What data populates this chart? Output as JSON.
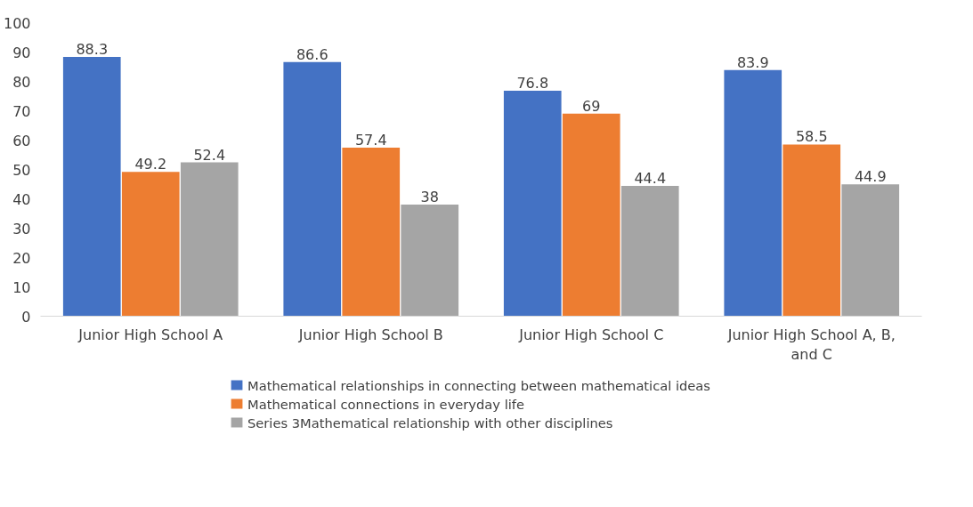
{
  "chart_data": {
    "type": "bar",
    "categories": [
      "Junior High School A",
      "Junior High School B",
      "Junior High School C",
      "Junior High School A, B, and C"
    ],
    "series": [
      {
        "name": "Mathematical relationships in connecting between mathematical ideas",
        "color": "#4472c4",
        "values": [
          88.3,
          86.6,
          76.8,
          83.9
        ]
      },
      {
        "name": "Mathematical connections in everyday life",
        "color": "#ed7d31",
        "values": [
          49.2,
          57.4,
          69,
          58.5
        ]
      },
      {
        "name": "Series 3Mathematical relationship with other disciplines",
        "color": "#a5a5a5",
        "values": [
          52.4,
          38,
          44.4,
          44.9
        ]
      }
    ],
    "ylim": [
      0,
      100
    ],
    "yticks": [
      0,
      10,
      20,
      30,
      40,
      50,
      60,
      70,
      80,
      90,
      100
    ],
    "data_labels": true,
    "grid": false,
    "legend": "bottom"
  }
}
